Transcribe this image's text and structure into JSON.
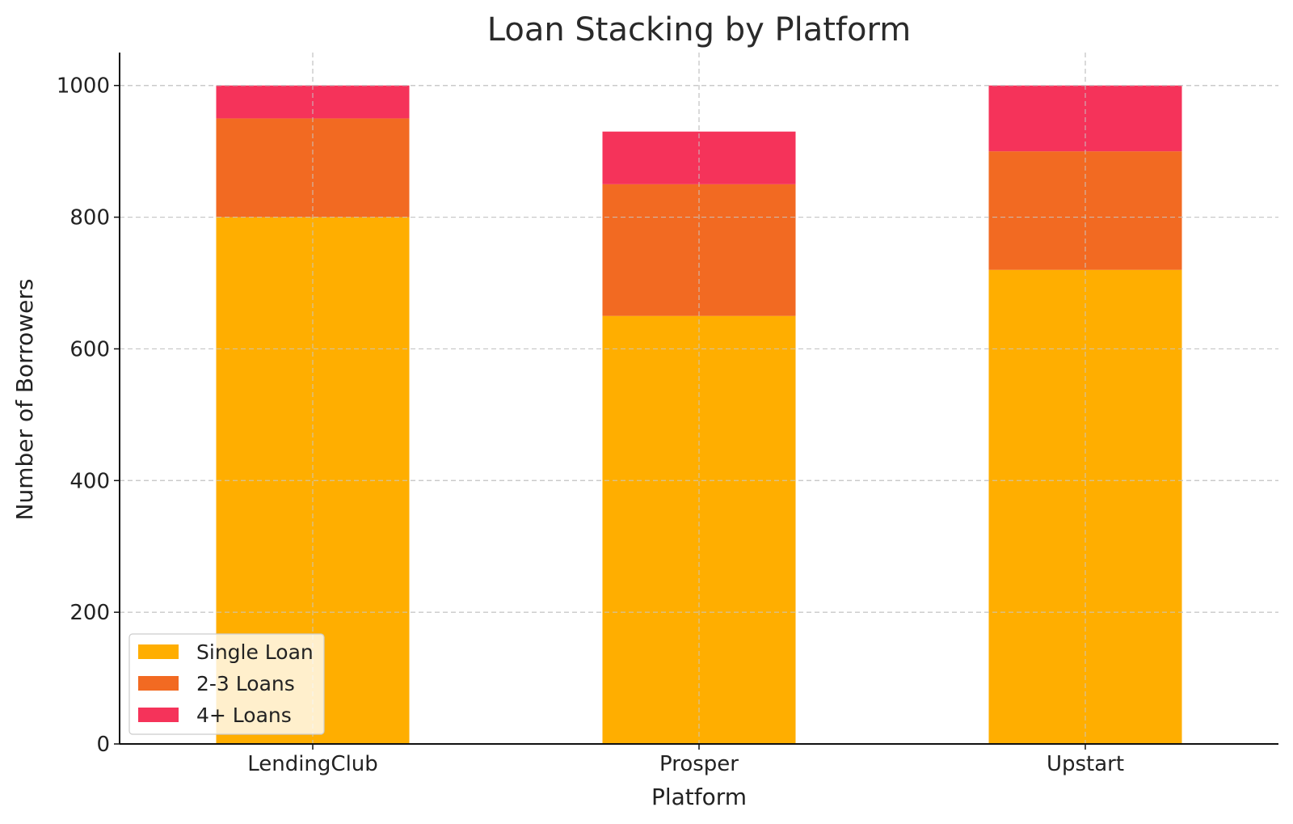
{
  "chart_data": {
    "type": "bar",
    "stacked": true,
    "title": "Loan Stacking by Platform",
    "xlabel": "Platform",
    "ylabel": "Number of Borrowers",
    "categories": [
      "LendingClub",
      "Prosper",
      "Upstart"
    ],
    "series": [
      {
        "name": "Single Loan",
        "values": [
          800,
          650,
          720
        ],
        "color": "#FFAE00"
      },
      {
        "name": "2-3 Loans",
        "values": [
          150,
          200,
          180
        ],
        "color": "#F26A22"
      },
      {
        "name": "4+ Loans",
        "values": [
          50,
          80,
          100
        ],
        "color": "#F5335A"
      }
    ],
    "ylim": [
      0,
      1050
    ],
    "yticks": [
      0,
      200,
      400,
      600,
      800,
      1000
    ],
    "grid": true,
    "legend_position": "lower-left"
  }
}
